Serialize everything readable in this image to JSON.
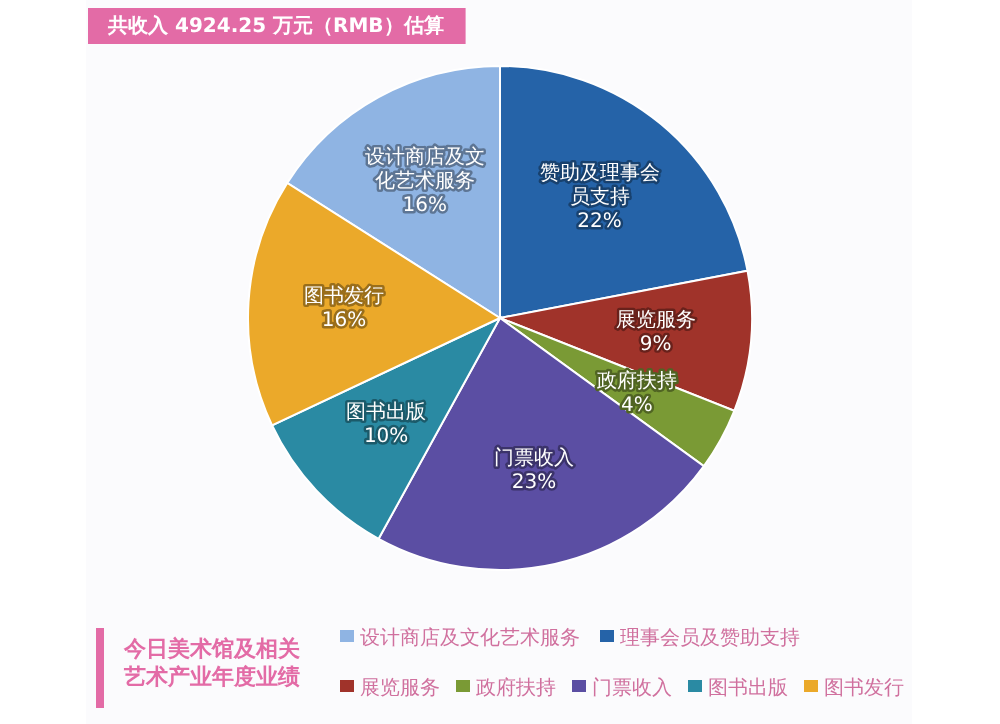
{
  "chart_data": {
    "type": "pie",
    "title": "共收入 4924.25 万元（RMB）估算",
    "subtitle": "今日美术馆及相关艺术产业年度业绩",
    "categories": [
      "设计商店及文化艺术服务",
      "理事会员及赞助支持",
      "展览服务",
      "政府扶持",
      "门票收入",
      "图书出版",
      "图书发行"
    ],
    "values": [
      16,
      22,
      9,
      4,
      23,
      10,
      16
    ],
    "colors": [
      "#8fb4e3",
      "#2563a8",
      "#a0332a",
      "#7a9a35",
      "#5b4ea3",
      "#2a8aa3",
      "#eba92a"
    ],
    "value_labels": [
      "16%",
      "22%",
      "9%",
      "4%",
      "23%",
      "10%",
      "16%"
    ],
    "legend": "bottom",
    "annotations": [
      {
        "text": "设计商店及文化艺术服务",
        "x": "设计商店及文化艺术服务"
      },
      {
        "text": "赞助及理事会员支持",
        "x": "理事会员及赞助支持"
      },
      {
        "text": "展览服务",
        "x": "展览服务"
      },
      {
        "text": "政府扶持",
        "x": "政府扶持"
      },
      {
        "text": "门票收入",
        "x": "门票收入"
      },
      {
        "text": "图书出版",
        "x": "图书出版"
      },
      {
        "text": "图书发行",
        "x": "图书发行"
      }
    ]
  }
}
